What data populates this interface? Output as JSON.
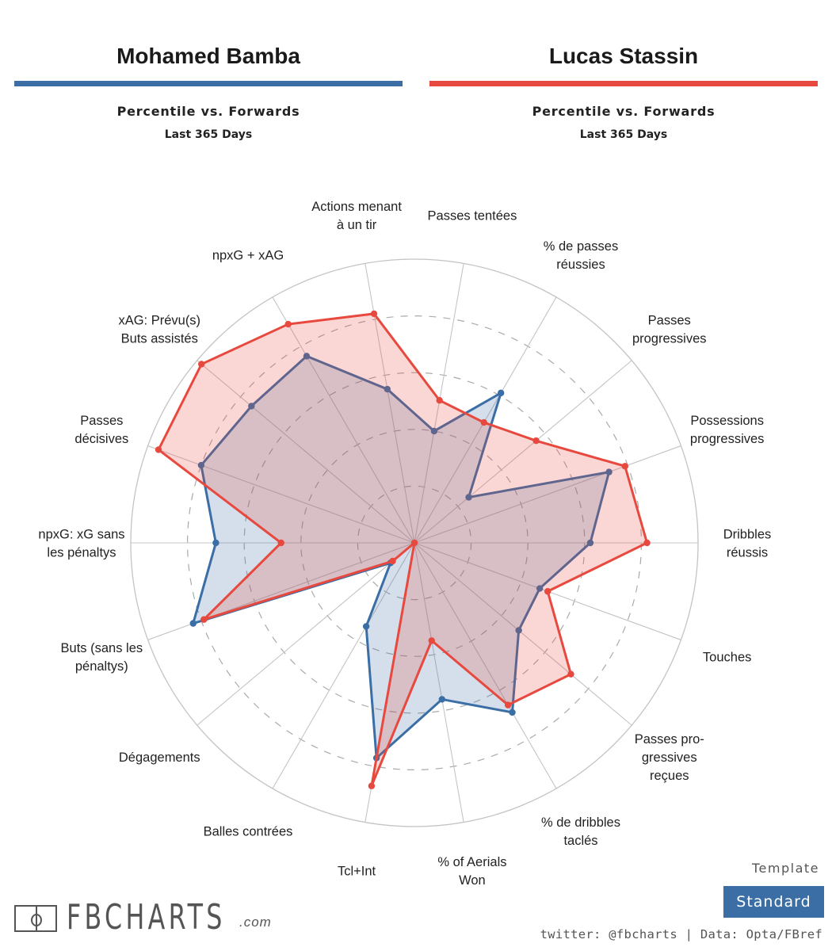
{
  "players": [
    {
      "name": "Mohamed Bamba",
      "color": "#3a6ea5",
      "subtitle": "Percentile vs. Forwards",
      "period": "Last 365 Days"
    },
    {
      "name": "Lucas Stassin",
      "color": "#e8493f",
      "subtitle": "Percentile vs. Forwards",
      "period": "Last 365 Days"
    }
  ],
  "chart_data": {
    "type": "radar",
    "title": "Percentile vs. Forwards — Last 365 Days",
    "scale": [
      0,
      100
    ],
    "rings": [
      20,
      40,
      60,
      80,
      100
    ],
    "grid": true,
    "start_angle_deg": 0,
    "direction": "counterclockwise",
    "categories": [
      [
        "Dribbles",
        "réussis"
      ],
      [
        "Possessions",
        "progressives"
      ],
      [
        "Passes",
        "progressives"
      ],
      [
        "% de passes",
        "réussies"
      ],
      [
        "Passes tentées"
      ],
      [
        "Actions menant",
        "à un tir"
      ],
      [
        "npxG + xAG"
      ],
      [
        "xAG: Prévu(s)",
        "Buts assistés"
      ],
      [
        "Passes",
        "décisives"
      ],
      [
        "npxG: xG sans",
        "les pénaltys"
      ],
      [
        "Buts (sans les",
        "pénaltys)"
      ],
      [
        "Dégagements"
      ],
      [
        "Balles contrées"
      ],
      [
        "Tcl+Int"
      ],
      [
        "% of Aerials",
        "Won"
      ],
      [
        "% de dribbles",
        "taclés"
      ],
      [
        "Passes pro-",
        "gressives",
        "reçues"
      ],
      [
        "Touches"
      ]
    ],
    "series": [
      {
        "name": "Mohamed Bamba",
        "color": "#3a6ea5",
        "values": [
          62,
          73,
          25,
          61,
          40,
          55,
          76,
          75,
          80,
          70,
          83,
          11,
          34,
          77,
          56,
          69,
          48,
          47
        ]
      },
      {
        "name": "Lucas Stassin",
        "color": "#e8493f",
        "values": [
          82,
          79,
          56,
          49,
          51,
          82,
          89,
          98,
          96,
          47,
          79,
          10,
          0,
          87,
          35,
          66,
          72,
          50
        ]
      }
    ]
  },
  "footer": {
    "logo_text": "FBCHARTS",
    "logo_suffix": ".com",
    "template_label": "Template",
    "template_value": "Standard",
    "credits": "twitter: @fbcharts | Data: Opta/FBref"
  }
}
